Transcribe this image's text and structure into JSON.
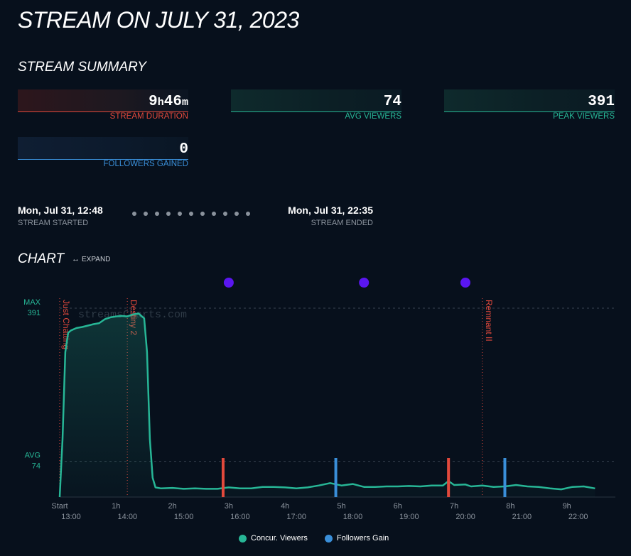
{
  "page": {
    "title": "STREAM ON JULY 31, 2023"
  },
  "summary": {
    "heading": "STREAM SUMMARY",
    "duration": {
      "hours": "9",
      "h_unit": "h",
      "minutes": "46",
      "m_unit": "m",
      "label": "STREAM DURATION"
    },
    "avg_viewers": {
      "value": "74",
      "label": "AVG VIEWERS"
    },
    "peak_viewers": {
      "value": "391",
      "label": "PEAK VIEWERS"
    },
    "followers": {
      "value": "0",
      "label": "FOLLOWERS GAINED"
    }
  },
  "timeline": {
    "started": {
      "value": "Mon, Jul 31, 12:48",
      "label": "STREAM STARTED"
    },
    "ended": {
      "value": "Mon, Jul 31, 22:35",
      "label": "STREAM ENDED"
    }
  },
  "chart_section": {
    "heading": "CHART",
    "expand_label": "EXPAND"
  },
  "colors": {
    "viewers": "#27b696",
    "followers": "#3a8fd9",
    "duration": "#e2493c",
    "marker": "#5a16f0",
    "background": "#07101c"
  },
  "chart_data": {
    "type": "line",
    "x_unit": "hours since stream start",
    "max_label": "MAX",
    "max_value": 391,
    "avg_label": "AVG",
    "avg_value": 74,
    "watermark": "streamsCharts.com",
    "x_ticks": [
      {
        "x": 0,
        "label": "Start",
        "clock": "13:00"
      },
      {
        "x": 1,
        "label": "1h",
        "clock": "14:00"
      },
      {
        "x": 2,
        "label": "2h",
        "clock": "15:00"
      },
      {
        "x": 3,
        "label": "3h",
        "clock": "16:00"
      },
      {
        "x": 4,
        "label": "4h",
        "clock": "17:00"
      },
      {
        "x": 5,
        "label": "5h",
        "clock": "18:00"
      },
      {
        "x": 6,
        "label": "6h",
        "clock": "19:00"
      },
      {
        "x": 7,
        "label": "7h",
        "clock": "20:00"
      },
      {
        "x": 8,
        "label": "8h",
        "clock": "21:00"
      },
      {
        "x": 9,
        "label": "9h",
        "clock": "22:00"
      }
    ],
    "categories_markers": [
      {
        "x": 0.0,
        "name": "Just Chatting"
      },
      {
        "x": 1.2,
        "name": "Destiny 2"
      },
      {
        "x": 7.5,
        "name": "Remnant II"
      }
    ],
    "purple_markers": [
      3.0,
      5.4,
      7.2
    ],
    "red_markers": [
      2.9,
      6.9
    ],
    "series": [
      {
        "name": "Concur. Viewers",
        "color": "#27b696",
        "points": [
          [
            0.0,
            0
          ],
          [
            0.05,
            120
          ],
          [
            0.1,
            300
          ],
          [
            0.15,
            340
          ],
          [
            0.2,
            345
          ],
          [
            0.3,
            350
          ],
          [
            0.4,
            352
          ],
          [
            0.5,
            355
          ],
          [
            0.6,
            358
          ],
          [
            0.7,
            360
          ],
          [
            0.8,
            368
          ],
          [
            0.9,
            372
          ],
          [
            1.0,
            374
          ],
          [
            1.1,
            375
          ],
          [
            1.2,
            374
          ],
          [
            1.3,
            378
          ],
          [
            1.4,
            380
          ],
          [
            1.5,
            370
          ],
          [
            1.55,
            300
          ],
          [
            1.6,
            120
          ],
          [
            1.65,
            40
          ],
          [
            1.7,
            20
          ],
          [
            1.8,
            18
          ],
          [
            2.0,
            19
          ],
          [
            2.2,
            17
          ],
          [
            2.4,
            18
          ],
          [
            2.6,
            17
          ],
          [
            2.8,
            17
          ],
          [
            3.0,
            20
          ],
          [
            3.2,
            18
          ],
          [
            3.4,
            18
          ],
          [
            3.6,
            21
          ],
          [
            3.8,
            21
          ],
          [
            4.0,
            20
          ],
          [
            4.2,
            18
          ],
          [
            4.4,
            20
          ],
          [
            4.6,
            24
          ],
          [
            4.8,
            29
          ],
          [
            5.0,
            24
          ],
          [
            5.2,
            27
          ],
          [
            5.4,
            21
          ],
          [
            5.6,
            21
          ],
          [
            5.8,
            22
          ],
          [
            6.0,
            22
          ],
          [
            6.2,
            23
          ],
          [
            6.4,
            22
          ],
          [
            6.6,
            24
          ],
          [
            6.8,
            24
          ],
          [
            6.9,
            33
          ],
          [
            7.0,
            25
          ],
          [
            7.2,
            26
          ],
          [
            7.3,
            22
          ],
          [
            7.5,
            24
          ],
          [
            7.7,
            21
          ],
          [
            7.9,
            22
          ],
          [
            8.1,
            25
          ],
          [
            8.3,
            22
          ],
          [
            8.5,
            21
          ],
          [
            8.7,
            18
          ],
          [
            8.9,
            16
          ],
          [
            9.1,
            21
          ],
          [
            9.3,
            22
          ],
          [
            9.5,
            18
          ]
        ]
      },
      {
        "name": "Followers Gain",
        "color": "#3a8fd9",
        "bars_at": [
          4.9,
          7.9
        ]
      }
    ]
  }
}
